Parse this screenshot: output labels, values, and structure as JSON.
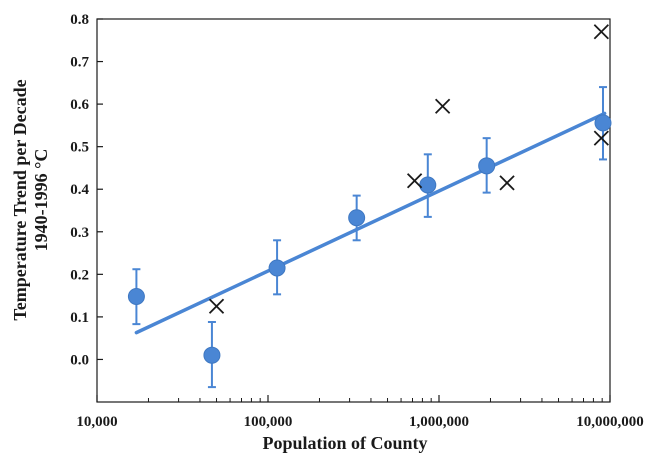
{
  "chart_data": {
    "type": "scatter",
    "xlabel": "Population of County",
    "ylabel_line1": "Temperature Trend per Decade",
    "ylabel_line2": "1940-1996 °C",
    "x_scale": "log",
    "xlim": [
      10000,
      10000000
    ],
    "ylim": [
      -0.1,
      0.8
    ],
    "x_ticks": [
      10000,
      100000,
      1000000,
      10000000
    ],
    "x_tick_labels": [
      "10,000",
      "100,000",
      "1,000,000",
      "10,000,000"
    ],
    "y_ticks": [
      0.0,
      0.1,
      0.2,
      0.3,
      0.4,
      0.5,
      0.6,
      0.7,
      0.8
    ],
    "y_tick_labels": [
      "0.0",
      "0.1",
      "0.2",
      "0.3",
      "0.4",
      "0.5",
      "0.6",
      "0.7",
      "0.8"
    ],
    "grid": false,
    "colors": {
      "circles": "#4a86d4",
      "fit_line": "#4a86d4",
      "crosses": "#1a1a1a",
      "axis": "#1a1a1a"
    },
    "series": [
      {
        "marker": "circle-with-error-bars",
        "points": [
          {
            "x": 17000,
            "y": 0.148,
            "err_low": 0.083,
            "err_high": 0.212
          },
          {
            "x": 47000,
            "y": 0.01,
            "err_low": -0.065,
            "err_high": 0.088
          },
          {
            "x": 113000,
            "y": 0.215,
            "err_low": 0.153,
            "err_high": 0.28
          },
          {
            "x": 330000,
            "y": 0.333,
            "err_low": 0.28,
            "err_high": 0.385
          },
          {
            "x": 860000,
            "y": 0.41,
            "err_low": 0.335,
            "err_high": 0.482
          },
          {
            "x": 1900000,
            "y": 0.455,
            "err_low": 0.392,
            "err_high": 0.52
          },
          {
            "x": 9100000,
            "y": 0.556,
            "err_low": 0.47,
            "err_high": 0.64
          }
        ]
      },
      {
        "marker": "x",
        "points": [
          {
            "x": 50000,
            "y": 0.125
          },
          {
            "x": 720000,
            "y": 0.42
          },
          {
            "x": 1050000,
            "y": 0.595
          },
          {
            "x": 2500000,
            "y": 0.415
          },
          {
            "x": 8900000,
            "y": 0.77
          },
          {
            "x": 8900000,
            "y": 0.52
          }
        ]
      }
    ],
    "fit_line": {
      "x_start": 17000,
      "y_start": 0.063,
      "x_end": 9300000,
      "y_end": 0.578
    }
  }
}
